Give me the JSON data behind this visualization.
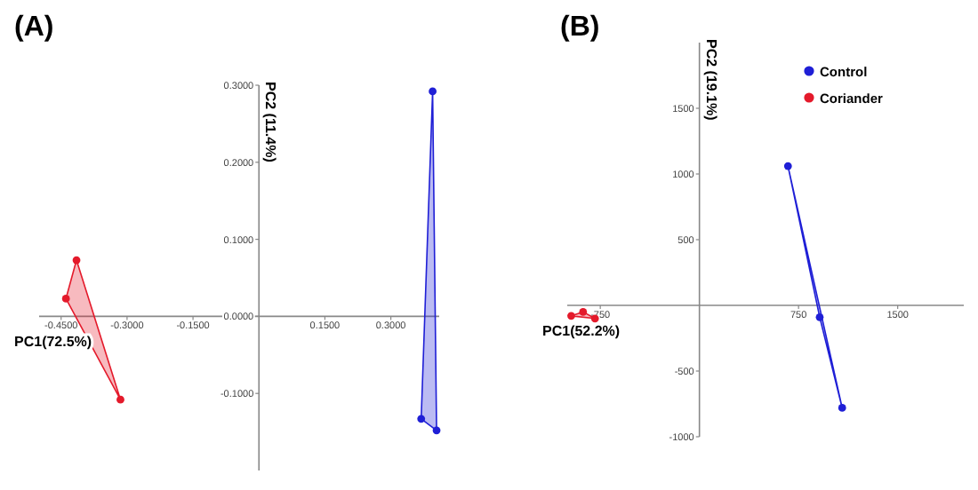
{
  "chart_data": [
    {
      "type": "area",
      "title": "(A)",
      "xlabel": "PC1(72.5%)",
      "ylabel": "PC2 (11.4%)",
      "xlim": [
        -0.5,
        0.41
      ],
      "ylim": [
        -0.2,
        0.3
      ],
      "xticks": [
        {
          "value": -0.45,
          "label": "-0.4500"
        },
        {
          "value": -0.3,
          "label": "-0.3000"
        },
        {
          "value": -0.15,
          "label": "-0.1500"
        },
        {
          "value": 0.15,
          "label": "0.1500"
        },
        {
          "value": 0.3,
          "label": "0.3000"
        }
      ],
      "yticks": [
        {
          "value": -0.1,
          "label": "-0.1000"
        },
        {
          "value": 0,
          "label": "0.0000"
        },
        {
          "value": 0.1,
          "label": "0.1000"
        },
        {
          "value": 0.2,
          "label": "0.2000"
        },
        {
          "value": 0.3,
          "label": "0.3000"
        }
      ],
      "marker": "circle",
      "legend": false,
      "grid": false,
      "series": [
        {
          "color": "#1f1fd6",
          "x": [
            0.395,
            0.369,
            0.404
          ],
          "values": [
            0.292,
            -0.133,
            -0.148
          ]
        },
        {
          "color": "#e41a2b",
          "x": [
            -0.415,
            -0.439,
            -0.315
          ],
          "values": [
            0.073,
            0.023,
            -0.108
          ]
        }
      ]
    },
    {
      "type": "area",
      "title": "(B)",
      "xlabel": "PC1(52.2%)",
      "ylabel": "PC2 (19.1%)",
      "xlim": [
        -1000,
        2000
      ],
      "ylim": [
        -1000,
        2000
      ],
      "xticks": [
        -750,
        750,
        1500
      ],
      "yticks": [
        -1000,
        -500,
        500,
        1000,
        1500
      ],
      "marker": "circle",
      "legend": "top right",
      "grid": false,
      "series": [
        {
          "name": "Control",
          "color": "#1f1fd6",
          "x": [
            670,
            910,
            1080
          ],
          "values": [
            1060,
            -90,
            -780
          ]
        },
        {
          "name": "Coriander",
          "color": "#e41a2b",
          "x": [
            -970,
            -880,
            -790
          ],
          "values": [
            -80,
            -50,
            -100
          ]
        }
      ]
    }
  ]
}
